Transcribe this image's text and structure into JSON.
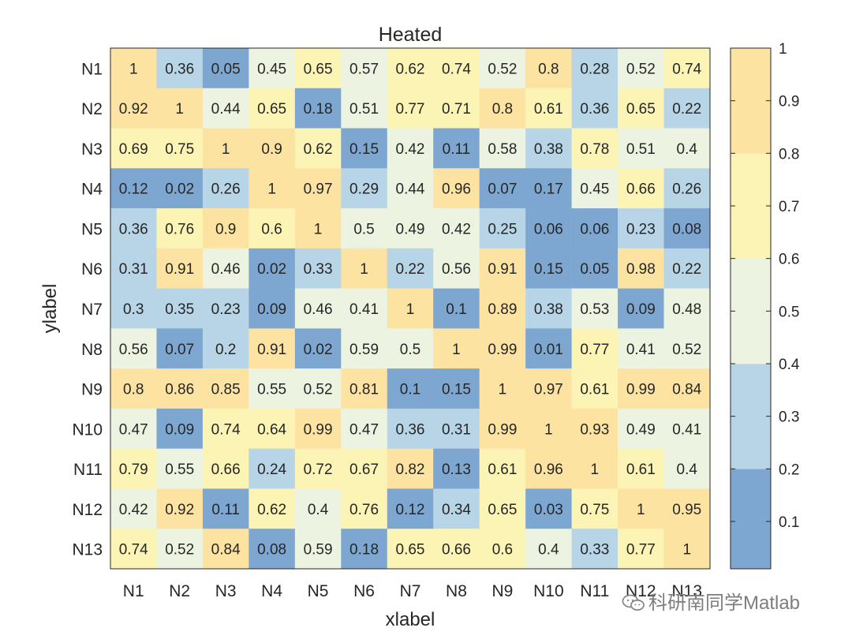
{
  "chart_data": {
    "type": "heatmap",
    "title": "Heated",
    "xlabel": "xlabel",
    "ylabel": "ylabel",
    "x_categories": [
      "N1",
      "N2",
      "N3",
      "N4",
      "N5",
      "N6",
      "N7",
      "N8",
      "N9",
      "N10",
      "N11",
      "N12",
      "N13"
    ],
    "y_categories": [
      "N1",
      "N2",
      "N3",
      "N4",
      "N5",
      "N6",
      "N7",
      "N8",
      "N9",
      "N10",
      "N11",
      "N12",
      "N13"
    ],
    "values": [
      [
        1,
        0.36,
        0.05,
        0.45,
        0.65,
        0.57,
        0.62,
        0.74,
        0.52,
        0.8,
        0.28,
        0.52,
        0.74
      ],
      [
        0.92,
        1,
        0.44,
        0.65,
        0.18,
        0.51,
        0.77,
        0.71,
        0.8,
        0.61,
        0.36,
        0.65,
        0.22
      ],
      [
        0.69,
        0.75,
        1,
        0.9,
        0.62,
        0.15,
        0.42,
        0.11,
        0.58,
        0.38,
        0.78,
        0.51,
        0.4
      ],
      [
        0.12,
        0.02,
        0.26,
        1,
        0.97,
        0.29,
        0.44,
        0.96,
        0.07,
        0.17,
        0.45,
        0.66,
        0.26
      ],
      [
        0.36,
        0.76,
        0.9,
        0.6,
        1,
        0.5,
        0.49,
        0.42,
        0.25,
        0.06,
        0.06,
        0.23,
        0.08
      ],
      [
        0.31,
        0.91,
        0.46,
        0.02,
        0.33,
        1,
        0.22,
        0.56,
        0.91,
        0.15,
        0.05,
        0.98,
        0.22
      ],
      [
        0.3,
        0.35,
        0.23,
        0.09,
        0.46,
        0.41,
        1,
        0.1,
        0.89,
        0.38,
        0.53,
        0.09,
        0.48
      ],
      [
        0.56,
        0.07,
        0.2,
        0.91,
        0.02,
        0.59,
        0.5,
        1,
        0.99,
        0.01,
        0.77,
        0.41,
        0.52
      ],
      [
        0.8,
        0.86,
        0.85,
        0.55,
        0.52,
        0.81,
        0.1,
        0.15,
        1,
        0.97,
        0.61,
        0.99,
        0.84
      ],
      [
        0.47,
        0.09,
        0.74,
        0.64,
        0.99,
        0.47,
        0.36,
        0.31,
        0.99,
        1,
        0.93,
        0.49,
        0.41
      ],
      [
        0.79,
        0.55,
        0.66,
        0.24,
        0.72,
        0.67,
        0.82,
        0.13,
        0.61,
        0.96,
        1,
        0.61,
        0.4
      ],
      [
        0.42,
        0.92,
        0.11,
        0.62,
        0.4,
        0.76,
        0.12,
        0.34,
        0.65,
        0.03,
        0.75,
        1,
        0.95
      ],
      [
        0.74,
        0.52,
        0.84,
        0.08,
        0.59,
        0.18,
        0.65,
        0.66,
        0.6,
        0.4,
        0.33,
        0.77,
        1
      ]
    ],
    "colorbar": {
      "range": [
        0.01,
        1
      ],
      "ticks": [
        0.1,
        0.2,
        0.3,
        0.4,
        0.5,
        0.6,
        0.7,
        0.8,
        0.9,
        1
      ],
      "tick_labels": [
        "0.1",
        "0.2",
        "0.3",
        "0.4",
        "0.5",
        "0.6",
        "0.7",
        "0.8",
        "0.9",
        "1"
      ],
      "bins": [
        {
          "min": 0.0,
          "max": 0.2,
          "color": "#7da7d1"
        },
        {
          "min": 0.2,
          "max": 0.4,
          "color": "#b7d5e6"
        },
        {
          "min": 0.4,
          "max": 0.6,
          "color": "#ecf4e1"
        },
        {
          "min": 0.6,
          "max": 0.8,
          "color": "#fcf4b4"
        },
        {
          "min": 0.8,
          "max": 1.0,
          "color": "#fde3a1"
        }
      ]
    },
    "grid": false
  },
  "watermark": {
    "text": "科研南同学Matlab",
    "icon": "wechat-icon"
  }
}
